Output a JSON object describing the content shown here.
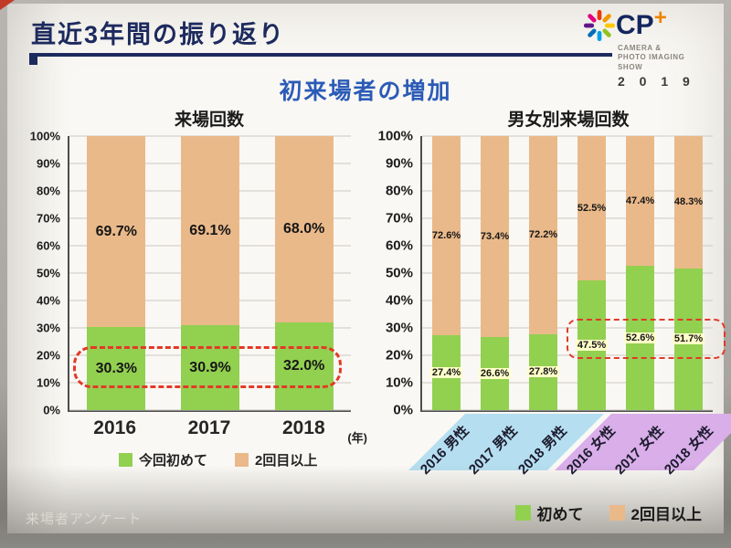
{
  "slide": {
    "title": "直近3年間の振り返り",
    "subtitle": "初来場者の増加",
    "footer": "来場者アンケート"
  },
  "logo": {
    "cp": "CP",
    "plus": "+",
    "tagline": [
      "CAMERA &",
      "PHOTO IMAGING",
      "SHOW"
    ],
    "year": "2 0 1 9",
    "mark_colors": [
      "#e8380d",
      "#f39800",
      "#fcc800",
      "#8fc31f",
      "#00a0e9",
      "#036eb8",
      "#601986",
      "#e4007f"
    ]
  },
  "colors": {
    "title_navy": "#1c2a5e",
    "subtitle_blue": "#2b5bb7",
    "dash_red": "#e23a28",
    "first_time_green": "#92d050",
    "repeat_tan": "#eab98a",
    "male_strip_blue": "#b5dff0",
    "female_strip_purple": "#d9aee9",
    "logo_plus_orange": "#f08300"
  },
  "chart_data": [
    {
      "type": "bar",
      "stacked": true,
      "title": "来場回数",
      "categories": [
        "2016",
        "2017",
        "2018"
      ],
      "x_unit": "(年)",
      "series": [
        {
          "name": "今回初めて",
          "color": "#92d050",
          "values": [
            30.3,
            30.9,
            32.0
          ]
        },
        {
          "name": "2回目以上",
          "color": "#eab98a",
          "values": [
            69.7,
            69.1,
            68.0
          ]
        }
      ],
      "ylim": [
        0,
        100
      ],
      "ytick_step": 10,
      "ytick_suffix": "%",
      "grid": true,
      "legend_position": "bottom",
      "annotation": "red dashed ellipse highlighting first-time visitor share"
    },
    {
      "type": "bar",
      "stacked": true,
      "title": "男女別来場回数",
      "categories": [
        "2016 男性",
        "2017 男性",
        "2018 男性",
        "2016 女性",
        "2017 女性",
        "2018 女性"
      ],
      "series": [
        {
          "name": "初めて",
          "color": "#92d050",
          "values": [
            27.4,
            26.6,
            27.8,
            47.5,
            52.6,
            51.7
          ]
        },
        {
          "name": "2回目以上",
          "color": "#eab98a",
          "values": [
            72.6,
            73.4,
            72.2,
            52.5,
            47.4,
            48.3
          ]
        }
      ],
      "ylim": [
        0,
        100
      ],
      "ytick_step": 10,
      "ytick_suffix": "%",
      "grid": true,
      "legend_position": "bottom-right",
      "category_groups": [
        {
          "label": "男性",
          "color": "#b5dff0",
          "span": [
            0,
            2
          ]
        },
        {
          "label": "女性",
          "color": "#d9aee9",
          "span": [
            3,
            5
          ]
        }
      ],
      "annotation": "red dashed box highlighting female first-time visitor share"
    }
  ]
}
